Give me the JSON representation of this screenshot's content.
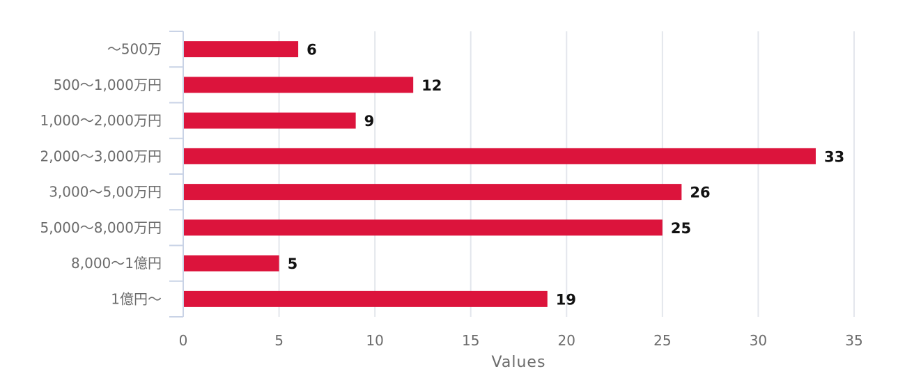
{
  "chart_data": {
    "type": "bar",
    "orientation": "horizontal",
    "categories": [
      "〜500万",
      "500〜1,000万円",
      "1,000〜2,000万円",
      "2,000〜3,000万円",
      "3,000〜5,00万円",
      "5,000〜8,000万円",
      "8,000〜1億円",
      "1億円〜"
    ],
    "values": [
      6,
      12,
      9,
      33,
      26,
      25,
      5,
      19
    ],
    "xlabel": "Values",
    "ylabel": "",
    "xlim": [
      0,
      35
    ],
    "x_ticks": [
      "0",
      "5",
      "10",
      "15",
      "20",
      "25",
      "30",
      "35"
    ],
    "grid": "vertical",
    "legend": "none",
    "colors": {
      "bar": "#dc143c"
    }
  }
}
